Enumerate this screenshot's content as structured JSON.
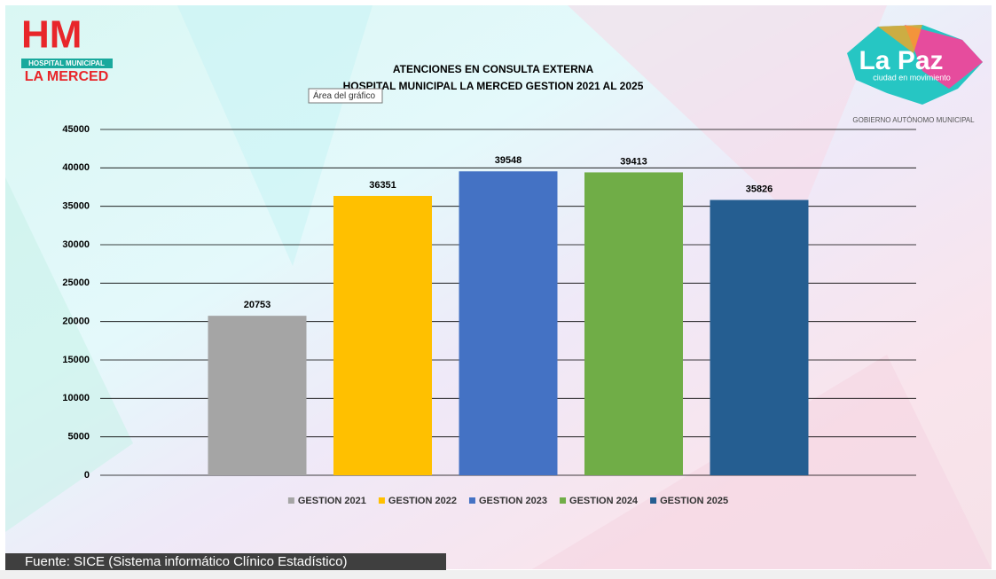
{
  "chart_data": {
    "type": "bar",
    "title": "ATENCIONES EN CONSULTA EXTERNA",
    "subtitle": "HOSPITAL MUNICIPAL LA MERCED GESTION 2021 AL 2025",
    "series": [
      {
        "name": "GESTION 2021",
        "color": "#a5a5a5",
        "values": [
          20753
        ]
      },
      {
        "name": "GESTION 2022",
        "color": "#ffc000",
        "values": [
          36351
        ]
      },
      {
        "name": "GESTION 2023",
        "color": "#4472c4",
        "values": [
          39548
        ]
      },
      {
        "name": "GESTION 2024",
        "color": "#70ad47",
        "values": [
          39413
        ]
      },
      {
        "name": "GESTION 2025",
        "color": "#255e91",
        "values": [
          35826
        ]
      }
    ],
    "ylim": [
      0,
      45000
    ],
    "yticks": [
      0,
      5000,
      10000,
      15000,
      20000,
      25000,
      30000,
      35000,
      40000,
      45000
    ],
    "grid": true,
    "legend": "bottom"
  },
  "slide": {
    "logo_left": {
      "mark": "HM",
      "line1": "HOSPITAL MUNICIPAL",
      "line2": "LA MERCED"
    },
    "logo_right": {
      "name": "La Paz",
      "tagline": "ciudad en movimiento",
      "caption": "GOBIERNO AUTÓNOMO MUNICIPAL"
    },
    "tooltip": "Área del gráfico",
    "source": "Fuente: SICE (Sistema informático Clínico Estadístico)"
  }
}
